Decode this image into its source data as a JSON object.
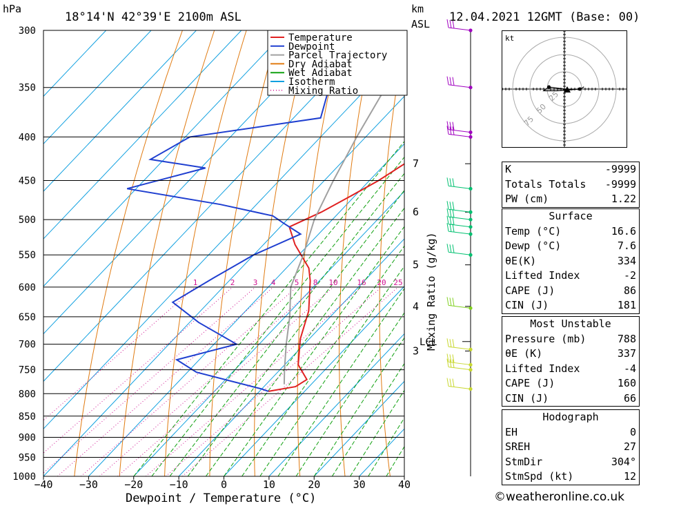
{
  "header": {
    "hpa_label": "hPa",
    "location": "18°14'N  42°39'E  2100m  ASL",
    "km_label": "km",
    "asl_label": "ASL",
    "datetime": "12.04.2021  12GMT  (Base: 00)"
  },
  "legend": [
    "Temperature",
    "Dewpoint",
    "Parcel Trajectory",
    "Dry Adiabat",
    "Wet Adiabat",
    "Isotherm",
    "Mixing Ratio"
  ],
  "colors": {
    "temperature": "#e02020",
    "dewpoint": "#1f3fd0",
    "parcel": "#a0a0a0",
    "dry_adiabat": "#e07a10",
    "wet_adiabat": "#10a010",
    "isotherm": "#10a0e0",
    "mixing_ratio": "#d01090"
  },
  "chart_data": {
    "type": "line",
    "title": "",
    "xlabel": "Dewpoint / Temperature (°C)",
    "ylabel": "hPa",
    "right_label": "Mixing Ratio (g/kg)",
    "x_ticks": [
      -40,
      -30,
      -20,
      -10,
      0,
      10,
      20,
      30,
      40
    ],
    "pressure_levels": [
      300,
      350,
      400,
      450,
      500,
      550,
      600,
      650,
      700,
      750,
      800,
      850,
      900,
      950,
      1000
    ],
    "xlim": [
      -40,
      40
    ],
    "ylim": [
      1000,
      300
    ],
    "mixing_ratio_labels": [
      "1",
      "2",
      "3",
      "4",
      "5",
      "8",
      "10",
      "16",
      "20",
      "25"
    ],
    "km_ticks": [
      {
        "label": "7",
        "p": 430
      },
      {
        "label": "6",
        "p": 490
      },
      {
        "label": "5",
        "p": 565
      },
      {
        "label": "4",
        "p": 632
      },
      {
        "label": "3",
        "p": 713
      }
    ],
    "lcl_label": "LCL",
    "lcl_p": 695,
    "series": [
      {
        "name": "Temperature",
        "points": [
          [
            -32,
            300
          ],
          [
            -27,
            350
          ],
          [
            -23.5,
            375
          ],
          [
            -25,
            400
          ],
          [
            -24,
            415
          ],
          [
            -28,
            450
          ],
          [
            -31,
            470
          ],
          [
            -34,
            490
          ],
          [
            -38,
            510
          ],
          [
            -33,
            535
          ],
          [
            -25,
            570
          ],
          [
            -22,
            590
          ],
          [
            -16,
            640
          ],
          [
            -12,
            690
          ],
          [
            -7,
            740
          ],
          [
            -2,
            770
          ],
          [
            -3,
            785
          ],
          [
            -8,
            795
          ]
        ]
      },
      {
        "name": "Dewpoint",
        "points": [
          [
            -67,
            300
          ],
          [
            -54,
            380
          ],
          [
            -79,
            400
          ],
          [
            -83,
            425
          ],
          [
            -69,
            435
          ],
          [
            -82,
            460
          ],
          [
            -58,
            480
          ],
          [
            -44,
            495
          ],
          [
            -40,
            505
          ],
          [
            -34,
            520
          ],
          [
            -40,
            550
          ],
          [
            -44,
            585
          ],
          [
            -48,
            625
          ],
          [
            -38,
            660
          ],
          [
            -25,
            700
          ],
          [
            -35,
            730
          ],
          [
            -28,
            755
          ],
          [
            -10,
            790
          ],
          [
            -8,
            795
          ]
        ]
      },
      {
        "name": "Parcel Trajectory",
        "points": [
          [
            -49,
            300
          ],
          [
            -46,
            350
          ],
          [
            -42,
            400
          ],
          [
            -38,
            450
          ],
          [
            -34,
            500
          ],
          [
            -29,
            550
          ],
          [
            -25,
            600
          ],
          [
            -19,
            650
          ],
          [
            -14,
            700
          ],
          [
            -9,
            750
          ],
          [
            -6,
            780
          ]
        ]
      }
    ]
  },
  "wind_marker_levels": [
    300,
    350,
    395,
    400,
    460,
    490,
    500,
    510,
    520,
    550,
    635,
    710,
    740,
    750,
    790
  ],
  "hodograph": {
    "unit": "kt",
    "ring_labels": [
      "25",
      "50",
      "75"
    ],
    "points": [
      [
        0,
        0
      ],
      [
        -0.9,
        -0.12
      ],
      [
        -1.2,
        0.1
      ],
      [
        -0.4,
        0.1
      ],
      [
        0.9,
        0.0
      ],
      [
        1.0,
        -0.05
      ],
      [
        1.1,
        -0.1
      ],
      [
        1.12,
        -0.14
      ]
    ]
  },
  "indices": {
    "k_label": "K",
    "k_val": "-9999",
    "tt_label": "Totals Totals",
    "tt_val": "-9999",
    "pw_label": "PW (cm)",
    "pw_val": "1.22"
  },
  "surface": {
    "title": "Surface",
    "temp_label": "Temp (°C)",
    "temp_val": "16.6",
    "dewp_label": "Dewp (°C)",
    "dewp_val": "7.6",
    "theta_label": "θE(K)",
    "theta_val": "334",
    "li_label": "Lifted Index",
    "li_val": "-2",
    "cape_label": "CAPE (J)",
    "cape_val": "86",
    "cin_label": "CIN (J)",
    "cin_val": "181"
  },
  "most_unstable": {
    "title": "Most Unstable",
    "pres_label": "Pressure (mb)",
    "pres_val": "788",
    "theta_label": "θE (K)",
    "theta_val": "337",
    "li_label": "Lifted Index",
    "li_val": "-4",
    "cape_label": "CAPE (J)",
    "cape_val": "160",
    "cin_label": "CIN (J)",
    "cin_val": "66"
  },
  "hodo_table": {
    "title": "Hodograph",
    "eh_label": "EH",
    "eh_val": "0",
    "sreh_label": "SREH",
    "sreh_val": "27",
    "stmdir_label": "StmDir",
    "stmdir_val": "304°",
    "stmspd_label": "StmSpd (kt)",
    "stmspd_val": "12"
  },
  "footer": "©weatheronline.co.uk"
}
